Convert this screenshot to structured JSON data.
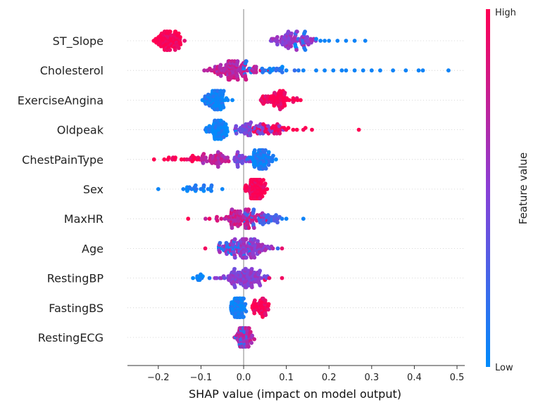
{
  "chart_data": {
    "type": "scatter",
    "subtype": "shap-beeswarm",
    "title": "",
    "xlabel": "SHAP value (impact on model output)",
    "ylabel": "",
    "xlim": [
      -0.27,
      0.52
    ],
    "x_ticks": [
      "−0.2",
      "−0.1",
      "0.0",
      "0.1",
      "0.2",
      "0.3",
      "0.4",
      "0.5"
    ],
    "x_tick_values": [
      -0.2,
      -0.1,
      0.0,
      0.1,
      0.2,
      0.3,
      0.4,
      0.5
    ],
    "colorbar": {
      "title": "Feature value",
      "high_label": "High",
      "low_label": "Low",
      "high_color": "#ff0052",
      "mid_color": "#8a3fd6",
      "low_color": "#008bfb"
    },
    "grid": false,
    "features": [
      {
        "name": "ST_Slope",
        "clusters": [
          {
            "from": -0.24,
            "to": -0.09,
            "center": -0.175,
            "spread": 0.018,
            "count": 95,
            "value": 0.98
          },
          {
            "from": 0.06,
            "to": 0.17,
            "center": 0.11,
            "spread": 0.025,
            "count": 70,
            "value": 0.55
          },
          {
            "from": 0.12,
            "to": 0.16,
            "center": 0.135,
            "spread": 0.012,
            "count": 14,
            "value": 0.12
          }
        ],
        "points": [
          [
            0.18,
            0.05
          ],
          [
            0.19,
            0.05
          ],
          [
            0.22,
            0.05
          ],
          [
            0.24,
            0.05
          ],
          [
            0.26,
            0.05
          ],
          [
            0.285,
            0.05
          ],
          [
            0.17,
            0.05
          ],
          [
            0.2,
            0.05
          ]
        ]
      },
      {
        "name": "Cholesterol",
        "clusters": [
          {
            "from": -0.11,
            "to": 0.03,
            "center": -0.03,
            "spread": 0.03,
            "count": 110,
            "value": 0.72
          },
          {
            "from": 0.0,
            "to": 0.2,
            "center": 0.05,
            "spread": 0.04,
            "count": 25,
            "value": 0.08
          }
        ],
        "points": [
          [
            0.1,
            0.05
          ],
          [
            0.14,
            0.05
          ],
          [
            0.17,
            0.05
          ],
          [
            0.19,
            0.05
          ],
          [
            0.21,
            0.05
          ],
          [
            0.23,
            0.05
          ],
          [
            0.24,
            0.05
          ],
          [
            0.26,
            0.05
          ],
          [
            0.28,
            0.05
          ],
          [
            0.3,
            0.05
          ],
          [
            0.32,
            0.05
          ],
          [
            0.35,
            0.05
          ],
          [
            0.38,
            0.05
          ],
          [
            0.41,
            0.05
          ],
          [
            0.42,
            0.05
          ],
          [
            0.48,
            0.05
          ],
          [
            0.04,
            0.9
          ],
          [
            0.06,
            0.95
          ],
          [
            0.09,
            0.1
          ]
        ]
      },
      {
        "name": "ExerciseAngina",
        "clusters": [
          {
            "from": -0.1,
            "to": -0.01,
            "center": -0.065,
            "spread": 0.012,
            "count": 85,
            "value": 0.06
          },
          {
            "from": 0.04,
            "to": 0.15,
            "center": 0.08,
            "spread": 0.02,
            "count": 70,
            "value": 0.97
          }
        ],
        "points": []
      },
      {
        "name": "Oldpeak",
        "clusters": [
          {
            "from": -0.09,
            "to": -0.01,
            "center": -0.06,
            "spread": 0.014,
            "count": 70,
            "value": 0.05
          },
          {
            "from": -0.02,
            "to": 0.1,
            "center": 0.02,
            "spread": 0.03,
            "count": 55,
            "value": 0.45
          },
          {
            "from": 0.02,
            "to": 0.16,
            "center": 0.07,
            "spread": 0.03,
            "count": 35,
            "value": 0.95
          }
        ],
        "points": [
          [
            0.27,
            1.0
          ],
          [
            0.16,
            0.98
          ],
          [
            0.14,
            0.96
          ]
        ]
      },
      {
        "name": "ChestPainType",
        "clusters": [
          {
            "from": -0.2,
            "to": -0.1,
            "center": -0.13,
            "spread": 0.025,
            "count": 20,
            "value": 0.98
          },
          {
            "from": -0.1,
            "to": 0.0,
            "center": -0.065,
            "spread": 0.018,
            "count": 45,
            "value": 0.72
          },
          {
            "from": -0.03,
            "to": 0.02,
            "center": -0.01,
            "spread": 0.012,
            "count": 25,
            "value": 0.45
          },
          {
            "from": 0.0,
            "to": 0.09,
            "center": 0.04,
            "spread": 0.014,
            "count": 90,
            "value": 0.08
          }
        ],
        "points": [
          [
            -0.21,
            1.0
          ]
        ]
      },
      {
        "name": "Sex",
        "clusters": [
          {
            "from": -0.17,
            "to": -0.06,
            "center": -0.11,
            "spread": 0.02,
            "count": 22,
            "value": 0.04
          },
          {
            "from": 0.0,
            "to": 0.07,
            "center": 0.03,
            "spread": 0.009,
            "count": 130,
            "value": 0.98
          }
        ],
        "points": [
          [
            -0.2,
            0.04
          ],
          [
            -0.05,
            0.04
          ]
        ]
      },
      {
        "name": "MaxHR",
        "clusters": [
          {
            "from": -0.09,
            "to": 0.06,
            "center": -0.01,
            "spread": 0.028,
            "count": 90,
            "value": 0.75
          },
          {
            "from": 0.0,
            "to": 0.1,
            "center": 0.04,
            "spread": 0.025,
            "count": 45,
            "value": 0.25
          }
        ],
        "points": [
          [
            -0.13,
            1.0
          ],
          [
            -0.08,
            0.95
          ],
          [
            0.14,
            0.05
          ],
          [
            0.1,
            0.05
          ],
          [
            0.09,
            0.1
          ]
        ]
      },
      {
        "name": "Age",
        "clusters": [
          {
            "from": -0.06,
            "to": 0.09,
            "center": 0.005,
            "spread": 0.028,
            "count": 120,
            "value": 0.55
          },
          {
            "from": -0.06,
            "to": 0.04,
            "center": -0.02,
            "spread": 0.02,
            "count": 30,
            "value": 0.1
          }
        ],
        "points": [
          [
            -0.09,
            0.95
          ],
          [
            0.09,
            0.9
          ],
          [
            0.08,
            0.2
          ]
        ]
      },
      {
        "name": "RestingBP",
        "clusters": [
          {
            "from": -0.07,
            "to": 0.06,
            "center": -0.005,
            "spread": 0.026,
            "count": 110,
            "value": 0.5
          },
          {
            "from": -0.12,
            "to": -0.09,
            "center": -0.105,
            "spread": 0.008,
            "count": 10,
            "value": 0.05
          }
        ],
        "points": [
          [
            0.09,
            0.95
          ],
          [
            -0.08,
            0.1
          ],
          [
            0.06,
            0.9
          ],
          [
            0.05,
            0.98
          ]
        ]
      },
      {
        "name": "FastingBS",
        "clusters": [
          {
            "from": -0.04,
            "to": 0.01,
            "center": -0.012,
            "spread": 0.008,
            "count": 110,
            "value": 0.05
          },
          {
            "from": 0.02,
            "to": 0.07,
            "center": 0.04,
            "spread": 0.012,
            "count": 45,
            "value": 0.98
          }
        ],
        "points": []
      },
      {
        "name": "RestingECG",
        "clusters": [
          {
            "from": -0.03,
            "to": 0.03,
            "center": 0.0,
            "spread": 0.01,
            "count": 75,
            "value": 0.7
          },
          {
            "from": -0.02,
            "to": 0.02,
            "center": 0.0,
            "spread": 0.008,
            "count": 20,
            "value": 0.15
          }
        ],
        "points": []
      }
    ]
  }
}
